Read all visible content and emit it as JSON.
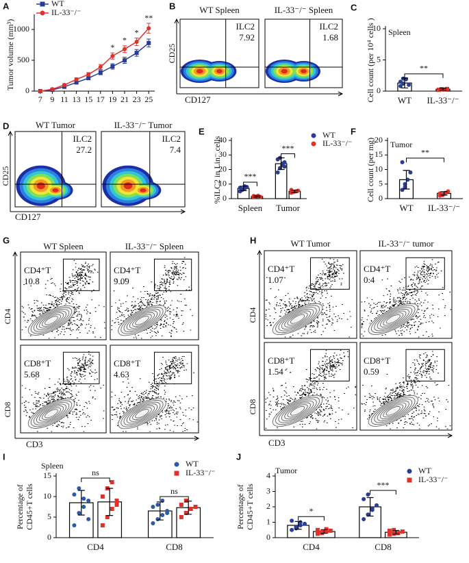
{
  "chart_data": [
    {
      "panel": "A",
      "type": "line",
      "ylabel": "Tumor volume (mm³)",
      "x": [
        7,
        9,
        11,
        13,
        15,
        17,
        19,
        21,
        23,
        25
      ],
      "xlim": [
        6,
        26
      ],
      "xticks": [
        7,
        9,
        11,
        13,
        15,
        17,
        19,
        21,
        23,
        25
      ],
      "ylim": [
        0,
        1200
      ],
      "yticks": [
        0,
        500,
        1000
      ],
      "legend": "top-left",
      "series": [
        {
          "name": "WT",
          "color": "#2a3d96",
          "marker": "square",
          "values": [
            0,
            20,
            70,
            140,
            210,
            300,
            400,
            500,
            620,
            780
          ],
          "errors": [
            5,
            10,
            15,
            20,
            25,
            35,
            45,
            50,
            55,
            65
          ]
        },
        {
          "name": "IL-33⁻/⁻",
          "color": "#e0312b",
          "marker": "circle",
          "values": [
            0,
            30,
            100,
            190,
            270,
            390,
            570,
            680,
            800,
            1020
          ],
          "errors": [
            5,
            10,
            20,
            25,
            30,
            40,
            50,
            55,
            60,
            80
          ]
        }
      ],
      "annotations": [
        {
          "x": 19,
          "text": "*"
        },
        {
          "x": 21,
          "text": "*"
        },
        {
          "x": 23,
          "text": "*"
        },
        {
          "x": 25,
          "text": "**"
        }
      ]
    },
    {
      "panel": "C",
      "type": "bar",
      "ylabel": "Cell count (per 10⁴ cells )",
      "subtitle": "Spleen",
      "categories": [
        "WT",
        "IL-33⁻/⁻"
      ],
      "values": [
        1.3,
        0.3
      ],
      "errors": [
        0.8,
        0.15
      ],
      "points": [
        [
          0.8,
          1.2,
          1.9,
          1.0,
          1.5,
          2.0
        ],
        [
          0.2,
          0.3,
          0.25,
          0.35,
          0.2,
          0.3
        ]
      ],
      "colors": [
        "#2a3d96",
        "#e0312b"
      ],
      "markers": [
        "circle",
        "square"
      ],
      "ylim": [
        0,
        10
      ],
      "yticks": [
        0,
        5,
        10
      ],
      "significance": "**"
    },
    {
      "panel": "E",
      "type": "bar",
      "ylabel": "%ILC2 in Lin⁻ cells",
      "categories": [
        "Spleen",
        "Tumor"
      ],
      "ylim": [
        0,
        40
      ],
      "yticks": [
        0,
        10,
        20,
        30,
        40
      ],
      "legend": "right",
      "series": [
        {
          "name": "WT",
          "color": "#2a3d96",
          "marker": "circle",
          "values": [
            7,
            24
          ],
          "errors": [
            1.5,
            4
          ],
          "points": [
            [
              5,
              6,
              7,
              8,
              7.5,
              6.5,
              8.5
            ],
            [
              18,
              21,
              23,
              25,
              27,
              28,
              24,
              22
            ]
          ]
        },
        {
          "name": "IL-33⁻/⁻",
          "color": "#e0312b",
          "marker": "circle",
          "values": [
            1.5,
            5
          ],
          "errors": [
            0.5,
            0.8
          ],
          "points": [
            [
              1,
              1.5,
              2,
              1.2,
              1.8,
              1.4
            ],
            [
              4,
              4.5,
              5,
              5.5,
              6,
              4.8
            ]
          ]
        }
      ],
      "significance": [
        "***",
        "***"
      ]
    },
    {
      "panel": "F",
      "type": "bar",
      "ylabel": "Cell count (per mg)",
      "subtitle": "Tumor",
      "categories": [
        "WT",
        "IL-33⁻/⁻"
      ],
      "values": [
        6.5,
        1.8
      ],
      "errors": [
        3.2,
        0.6
      ],
      "points": [
        [
          3,
          4,
          6.5,
          9,
          12.5,
          5
        ],
        [
          1,
          1.5,
          2,
          2.5,
          1.8,
          1.2
        ]
      ],
      "colors": [
        "#2a3d96",
        "#e0312b"
      ],
      "markers": [
        "circle",
        "circle"
      ],
      "ylim": [
        0,
        20
      ],
      "yticks": [
        0,
        5,
        10,
        15,
        20
      ],
      "significance": "**"
    },
    {
      "panel": "I",
      "type": "bar",
      "ylabel": [
        "Percentage of",
        "CD45+T cells"
      ],
      "subtitle": "Spleen",
      "categories": [
        "CD4",
        "CD8"
      ],
      "ylim": [
        0,
        15
      ],
      "yticks": [
        0,
        5,
        10,
        15
      ],
      "legend": "top-right",
      "series": [
        {
          "name": "WT",
          "color": "#2a5aa8",
          "marker": "circle",
          "values": [
            8.5,
            6.5
          ],
          "errors": [
            3,
            2.2
          ],
          "points": [
            [
              3,
              6,
              7.5,
              9,
              10.5,
              12,
              9.5,
              4.5
            ],
            [
              3.5,
              4.5,
              5.5,
              6.5,
              7.5,
              8,
              9,
              6
            ]
          ]
        },
        {
          "name": "IL-33⁻/⁻",
          "color": "#e0312b",
          "marker": "square",
          "values": [
            8.7,
            7.3
          ],
          "errors": [
            3.3,
            1.6
          ],
          "points": [
            [
              3,
              5,
              7,
              9,
              10,
              12,
              13.5,
              8
            ],
            [
              5,
              6,
              7,
              7.5,
              8,
              9,
              7
            ]
          ]
        }
      ],
      "significance": [
        "ns",
        "ns"
      ]
    },
    {
      "panel": "J",
      "type": "bar",
      "ylabel": [
        "Percentage of",
        "CD45+T cells"
      ],
      "subtitle": "Tumor",
      "categories": [
        "CD4",
        "CD8"
      ],
      "ylim": [
        0,
        4
      ],
      "yticks": [
        0,
        1,
        2,
        3,
        4
      ],
      "legend": "top-right",
      "series": [
        {
          "name": "WT",
          "color": "#2a3d96",
          "marker": "circle",
          "values": [
            0.8,
            2.0
          ],
          "errors": [
            0.25,
            0.6
          ],
          "points": [
            [
              0.5,
              0.6,
              0.8,
              0.9,
              1.1,
              0.7,
              1.0
            ],
            [
              1.2,
              1.5,
              1.9,
              2.1,
              2.5,
              2.8,
              1.8
            ]
          ]
        },
        {
          "name": "IL-33⁻/⁻",
          "color": "#e0312b",
          "marker": "square",
          "values": [
            0.4,
            0.35
          ],
          "errors": [
            0.12,
            0.12
          ],
          "points": [
            [
              0.25,
              0.3,
              0.4,
              0.45,
              0.5,
              0.35,
              0.55
            ],
            [
              0.2,
              0.25,
              0.3,
              0.4,
              0.45,
              0.5,
              0.3
            ]
          ]
        }
      ],
      "significance": [
        "*",
        "***"
      ]
    }
  ],
  "flow": [
    {
      "panel": "B",
      "style": "density",
      "titles": [
        "WT Spleen",
        "IL-33⁻/⁻ Spleen"
      ],
      "xlabel": "CD127",
      "rows": [
        {
          "ylabel": "CD25",
          "gates": [
            {
              "label": "ILC2",
              "value": 7.92
            },
            {
              "label": "ILC2",
              "value": 1.68
            }
          ]
        }
      ]
    },
    {
      "panel": "D",
      "style": "density",
      "titles": [
        "WT Tumor",
        "IL-33⁻/⁻ Tumor"
      ],
      "xlabel": "CD127",
      "rows": [
        {
          "ylabel": "CD25",
          "gates": [
            {
              "label": "ILC2",
              "value": 27.2
            },
            {
              "label": "ILC2",
              "value": 7.4
            }
          ]
        }
      ]
    },
    {
      "panel": "G",
      "style": "contour",
      "titles": [
        "WT Spleen",
        "IL-33⁻/⁻ Spleen"
      ],
      "xlabel": "CD3",
      "rows": [
        {
          "ylabel": "CD4",
          "gates": [
            {
              "label": "CD4⁺T",
              "value": 10.8
            },
            {
              "label": "CD4⁺T",
              "value": 9.09
            }
          ]
        },
        {
          "ylabel": "CD8",
          "gates": [
            {
              "label": "CD8⁺T",
              "value": 5.68
            },
            {
              "label": "CD8⁺T",
              "value": 4.63
            }
          ]
        }
      ]
    },
    {
      "panel": "H",
      "style": "contour",
      "titles": [
        "WT Tumor",
        "IL-33⁻/⁻ tumor"
      ],
      "xlabel": "CD3",
      "rows": [
        {
          "ylabel": "CD4",
          "gates": [
            {
              "label": "CD4⁺T",
              "value": 1.07
            },
            {
              "label": "CD4⁺T",
              "value": 0.4
            }
          ]
        },
        {
          "ylabel": "CD8",
          "gates": [
            {
              "label": "CD8⁺T",
              "value": 1.54
            },
            {
              "label": "CD8⁺T",
              "value": 0.59
            }
          ]
        }
      ]
    }
  ]
}
